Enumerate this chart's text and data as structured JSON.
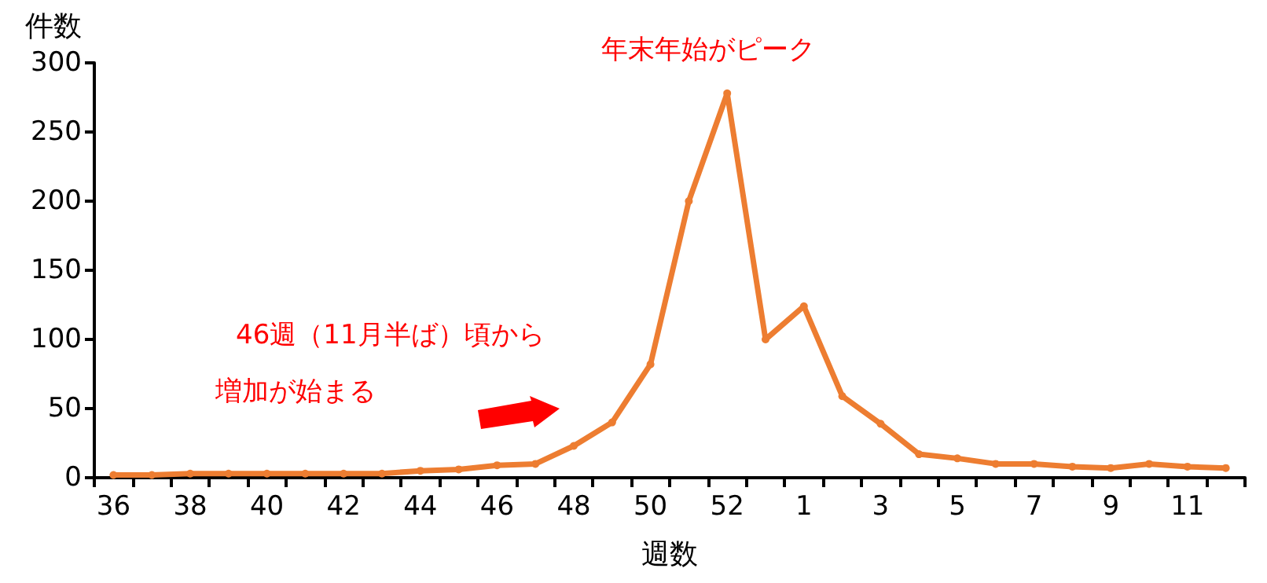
{
  "chart_data": {
    "type": "line",
    "xlabel": "週数",
    "ylabel": "件数",
    "categories": [
      "36",
      null,
      "38",
      null,
      "40",
      null,
      "42",
      null,
      "44",
      null,
      "46",
      null,
      "48",
      null,
      "50",
      null,
      "52",
      null,
      "1",
      null,
      "3",
      null,
      "5",
      null,
      "7",
      null,
      "9",
      null,
      "11",
      null
    ],
    "series": [
      {
        "color": "#ed7d31",
        "values": [
          2,
          2,
          3,
          3,
          3,
          3,
          3,
          3,
          5,
          6,
          9,
          10,
          23,
          40,
          82,
          200,
          278,
          100,
          124,
          59,
          39,
          17,
          14,
          10,
          10,
          8,
          7,
          10,
          8,
          7
        ]
      }
    ],
    "ylim": [
      0,
      300
    ],
    "yticks": [
      0,
      50,
      100,
      150,
      200,
      250,
      300
    ],
    "grid": false,
    "marker": "circle",
    "line_style": "solid",
    "annotations": [
      {
        "text": "年末年始がピーク",
        "x": "52",
        "y": 278
      },
      "46週（11月半ば）頃から",
      "増加が始まる"
    ]
  }
}
